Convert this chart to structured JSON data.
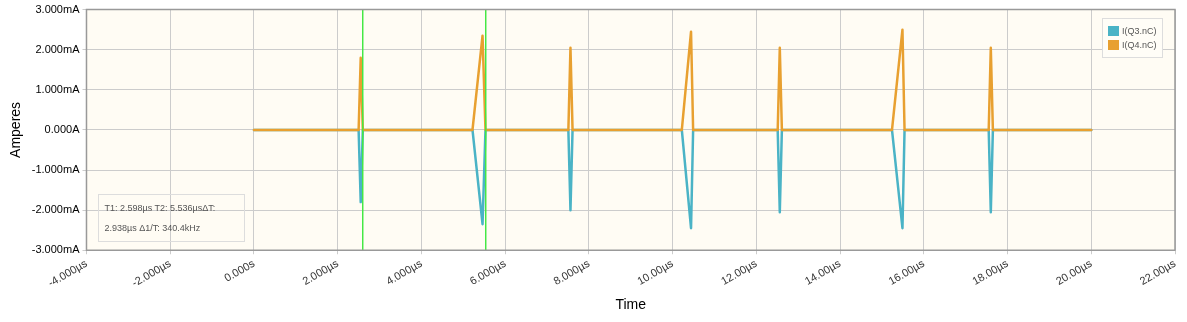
{
  "chart_data": {
    "type": "line",
    "xlabel": "Time",
    "ylabel": "Amperes",
    "xlim": [
      -4,
      22
    ],
    "xticks": [
      {
        "value": -4,
        "label": "-4.000µs"
      },
      {
        "value": -2,
        "label": "-2.000µs"
      },
      {
        "value": 0,
        "label": "0.000s"
      },
      {
        "value": 2,
        "label": "2.000µs"
      },
      {
        "value": 4,
        "label": "4.000µs"
      },
      {
        "value": 6,
        "label": "6.000µs"
      },
      {
        "value": 8,
        "label": "8.000µs"
      },
      {
        "value": 10,
        "label": "10.00µs"
      },
      {
        "value": 12,
        "label": "12.00µs"
      },
      {
        "value": 14,
        "label": "14.00µs"
      },
      {
        "value": 16,
        "label": "16.00µs"
      },
      {
        "value": 18,
        "label": "18.00µs"
      },
      {
        "value": 20,
        "label": "20.00µs"
      },
      {
        "value": 22,
        "label": "22.00µs"
      }
    ],
    "ylim": [
      -3,
      3
    ],
    "yticks": [
      {
        "value": -3,
        "label": "-3.000mA"
      },
      {
        "value": -2,
        "label": "-2.000mA"
      },
      {
        "value": -1,
        "label": "-1.000mA"
      },
      {
        "value": 0,
        "label": "0.000A"
      },
      {
        "value": 1,
        "label": "1.000mA"
      },
      {
        "value": 2,
        "label": "2.000mA"
      },
      {
        "value": 3,
        "label": "3.000mA"
      }
    ],
    "series": [
      {
        "name": "I(Q3.nC)",
        "color": "#4ab3c6",
        "x": [
          0,
          2.5,
          2.55,
          2.6,
          5.22,
          5.46,
          5.53,
          7.51,
          7.56,
          7.61,
          10.22,
          10.44,
          10.49,
          12.51,
          12.56,
          12.61,
          15.24,
          15.49,
          15.54,
          17.55,
          17.6,
          17.65,
          20
        ],
        "values": [
          0,
          0,
          -1.8,
          0,
          0,
          -2.35,
          0,
          0,
          -2.0,
          0,
          0,
          -2.45,
          0,
          0,
          -2.05,
          0,
          0,
          -2.45,
          0,
          0,
          -2.05,
          0,
          0
        ]
      },
      {
        "name": "I(Q4.nC)",
        "color": "#e8a030",
        "x": [
          0,
          2.5,
          2.55,
          2.6,
          5.22,
          5.46,
          5.53,
          7.51,
          7.56,
          7.61,
          10.22,
          10.44,
          10.49,
          12.51,
          12.56,
          12.61,
          15.24,
          15.49,
          15.54,
          17.55,
          17.6,
          17.65,
          20
        ],
        "values": [
          0,
          0,
          1.8,
          0,
          0,
          2.35,
          0,
          0,
          2.05,
          0,
          0,
          2.45,
          0,
          0,
          2.05,
          0,
          0,
          2.5,
          0,
          0,
          2.05,
          0,
          0
        ]
      }
    ],
    "ref_lines": [
      {
        "axis": "x",
        "value": 2.598,
        "color": "#44e844"
      },
      {
        "axis": "x",
        "value": 5.536,
        "color": "#44e844"
      }
    ],
    "annotations": [
      "T1: 2.598µs T2: 5.536µsΔT: 2.938µs Δ1/T: 340.4kHz"
    ],
    "grid": true,
    "legend": "top right",
    "marker": "none",
    "line_style": "solid"
  }
}
